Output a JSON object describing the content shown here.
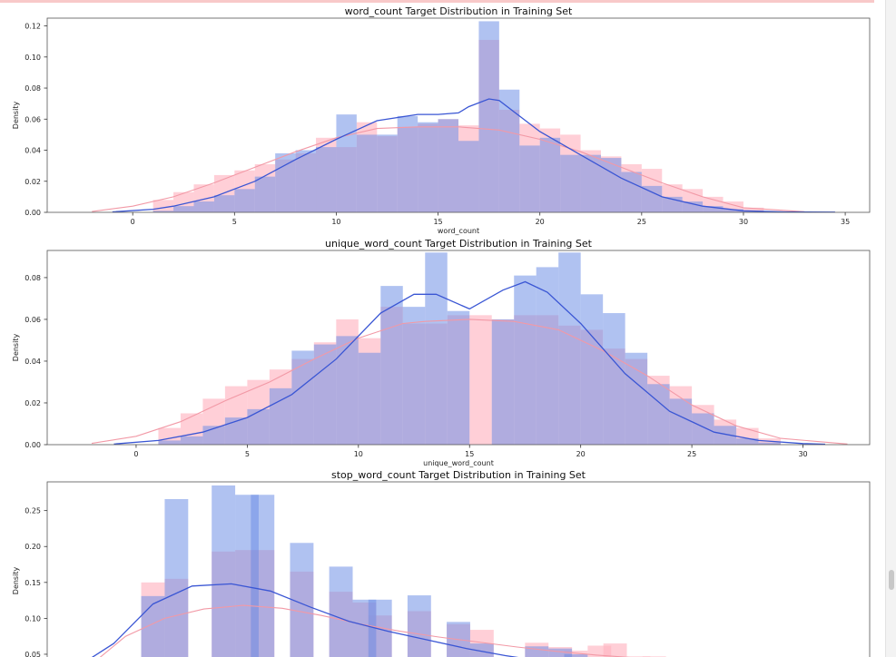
{
  "colors": {
    "target_0": "#ffb6c1",
    "target_1": "#6f8fe6",
    "kde_0": "#f299a6",
    "kde_1": "#3a56d4",
    "top_strip": "#f8c9c9"
  },
  "chart_data": [
    {
      "type": "histogram",
      "title": "word_count Target Distribution in Training Set",
      "xlabel": "word_count",
      "ylabel": "Density",
      "xlim": [
        -4.2,
        36.2
      ],
      "ylim": [
        0,
        0.125
      ],
      "xticks": [
        0,
        5,
        10,
        15,
        20,
        25,
        30,
        35
      ],
      "yticks": [
        0.0,
        0.02,
        0.04,
        0.06,
        0.08,
        0.1,
        0.12
      ],
      "ytick_decimals": 2,
      "bin_start": 1,
      "bin_width": 1,
      "series": [
        {
          "values": [
            0.008,
            0.013,
            0.018,
            0.024,
            0.027,
            0.031,
            0.034,
            0.038,
            0.048,
            0.042,
            0.058,
            0.049,
            0.055,
            0.057,
            0.06,
            0.056,
            0.111,
            0.066,
            0.057,
            0.054,
            0.05,
            0.04,
            0.036,
            0.031,
            0.028,
            0.018,
            0.015,
            0.01,
            0.007,
            0.003
          ]
        },
        {
          "values": [
            0.001,
            0.004,
            0.007,
            0.011,
            0.015,
            0.023,
            0.038,
            0.04,
            0.042,
            0.063,
            0.05,
            0.05,
            0.062,
            0.058,
            0.06,
            0.046,
            0.123,
            0.079,
            0.043,
            0.048,
            0.037,
            0.037,
            0.035,
            0.026,
            0.017,
            0.01,
            0.007,
            0.004,
            0.002,
            0.001
          ]
        }
      ],
      "kde": [
        {
          "x": [
            -2,
            0,
            2,
            4,
            6,
            8,
            10,
            12,
            14,
            16,
            18,
            20,
            22,
            24,
            26,
            28,
            30,
            33
          ],
          "y": [
            0.0005,
            0.004,
            0.01,
            0.019,
            0.029,
            0.039,
            0.048,
            0.054,
            0.055,
            0.055,
            0.053,
            0.047,
            0.039,
            0.029,
            0.019,
            0.01,
            0.003,
            0.0004
          ]
        },
        {
          "x": [
            -1,
            1,
            2,
            4,
            6,
            8,
            10,
            12,
            14,
            15,
            16,
            16.5,
            17.5,
            18,
            19,
            20,
            22,
            24,
            26,
            28,
            30,
            32,
            34.5
          ],
          "y": [
            0.0003,
            0.002,
            0.004,
            0.01,
            0.02,
            0.034,
            0.047,
            0.059,
            0.063,
            0.063,
            0.064,
            0.068,
            0.073,
            0.072,
            0.062,
            0.052,
            0.037,
            0.022,
            0.01,
            0.004,
            0.001,
            0.0003,
            0.0001
          ]
        }
      ]
    },
    {
      "type": "histogram",
      "title": "unique_word_count Target Distribution in Training Set",
      "xlabel": "unique_word_count",
      "ylabel": "Density",
      "xlim": [
        -4,
        33
      ],
      "ylim": [
        0,
        0.093
      ],
      "xticks": [
        0,
        5,
        10,
        15,
        20,
        25,
        30
      ],
      "yticks": [
        0.0,
        0.02,
        0.04,
        0.06,
        0.08
      ],
      "ytick_decimals": 2,
      "bin_start": 1,
      "bin_width": 1,
      "series": [
        {
          "values": [
            0.008,
            0.015,
            0.022,
            0.028,
            0.031,
            0.036,
            0.041,
            0.049,
            0.06,
            0.051,
            0.066,
            0.058,
            0.058,
            0.062,
            0.062,
            0.06,
            0.062,
            0.062,
            0.057,
            0.055,
            0.046,
            0.041,
            0.033,
            0.028,
            0.019,
            0.012,
            0.008,
            0.003
          ]
        },
        {
          "values": [
            0.002,
            0.004,
            0.009,
            0.013,
            0.017,
            0.027,
            0.045,
            0.048,
            0.052,
            0.044,
            0.076,
            0.066,
            0.092,
            0.064,
            0.0,
            0.06,
            0.081,
            0.085,
            0.092,
            0.072,
            0.063,
            0.044,
            0.029,
            0.022,
            0.015,
            0.009,
            0.003,
            0.001
          ]
        }
      ],
      "kde": [
        {
          "x": [
            -2,
            0,
            2,
            4,
            6,
            8,
            10,
            12,
            13,
            15,
            17,
            19,
            21,
            23,
            25,
            27,
            29,
            32
          ],
          "y": [
            0.0006,
            0.004,
            0.011,
            0.021,
            0.03,
            0.041,
            0.051,
            0.058,
            0.059,
            0.06,
            0.059,
            0.055,
            0.045,
            0.033,
            0.019,
            0.009,
            0.003,
            0.0003
          ]
        },
        {
          "x": [
            -1,
            1,
            3,
            5,
            7,
            9,
            11,
            12.5,
            13.5,
            15,
            16.5,
            17.5,
            18.5,
            20,
            22,
            24,
            26,
            28,
            30,
            31
          ],
          "y": [
            0.0003,
            0.002,
            0.006,
            0.013,
            0.024,
            0.041,
            0.063,
            0.072,
            0.072,
            0.065,
            0.074,
            0.078,
            0.073,
            0.058,
            0.034,
            0.016,
            0.006,
            0.002,
            0.0005,
            0.0002
          ]
        }
      ]
    },
    {
      "type": "histogram",
      "title": "stop_word_count Target Distribution in Training Set",
      "ylabel": "Density",
      "xlim": [
        -1.5,
        19.5
      ],
      "ylim": [
        0.031,
        0.29
      ],
      "yticks": [
        0.05,
        0.1,
        0.15,
        0.2,
        0.25
      ],
      "ytick_decimals": 2,
      "bin_start": 1,
      "bin_width": 0.6,
      "bin_centers": [
        1.2,
        1.8,
        3,
        3.6,
        4,
        5,
        6,
        6.6,
        7,
        8,
        9,
        9.6,
        11,
        11.6,
        12,
        12.6,
        13,
        13.6,
        14
      ],
      "series": [
        {
          "values": [
            0.15,
            0.155,
            0.193,
            0.195,
            0.195,
            0.165,
            0.137,
            0.122,
            0.104,
            0.11,
            0.092,
            0.084,
            0.066,
            0.06,
            0.055,
            0.062,
            0.065,
            0.047,
            0.047
          ]
        },
        {
          "values": [
            0.131,
            0.266,
            0.285,
            0.272,
            0.272,
            0.205,
            0.172,
            0.126,
            0.126,
            0.132,
            0.095,
            0.065,
            0.061,
            0.058,
            0.05,
            0.04,
            0.04,
            0.033,
            0.033
          ]
        }
      ],
      "kde": [
        {
          "x": [
            -0.5,
            0.5,
            1.5,
            2.5,
            3.5,
            4.5,
            5.5,
            6.5,
            7.5,
            8.5,
            9.5,
            10.5,
            11.5,
            12.5,
            13.5,
            14.5
          ],
          "y": [
            0.03,
            0.075,
            0.1,
            0.113,
            0.118,
            0.114,
            0.104,
            0.092,
            0.082,
            0.074,
            0.067,
            0.06,
            0.054,
            0.049,
            0.045,
            0.041
          ]
        },
        {
          "x": [
            -0.8,
            0.2,
            1.2,
            2.2,
            3.2,
            4.2,
            5.2,
            6.2,
            7.2,
            8.2,
            9.2,
            10.2,
            11.2,
            11.8
          ],
          "y": [
            0.03,
            0.065,
            0.12,
            0.145,
            0.148,
            0.138,
            0.116,
            0.096,
            0.082,
            0.07,
            0.058,
            0.048,
            0.04,
            0.035
          ]
        }
      ]
    }
  ]
}
